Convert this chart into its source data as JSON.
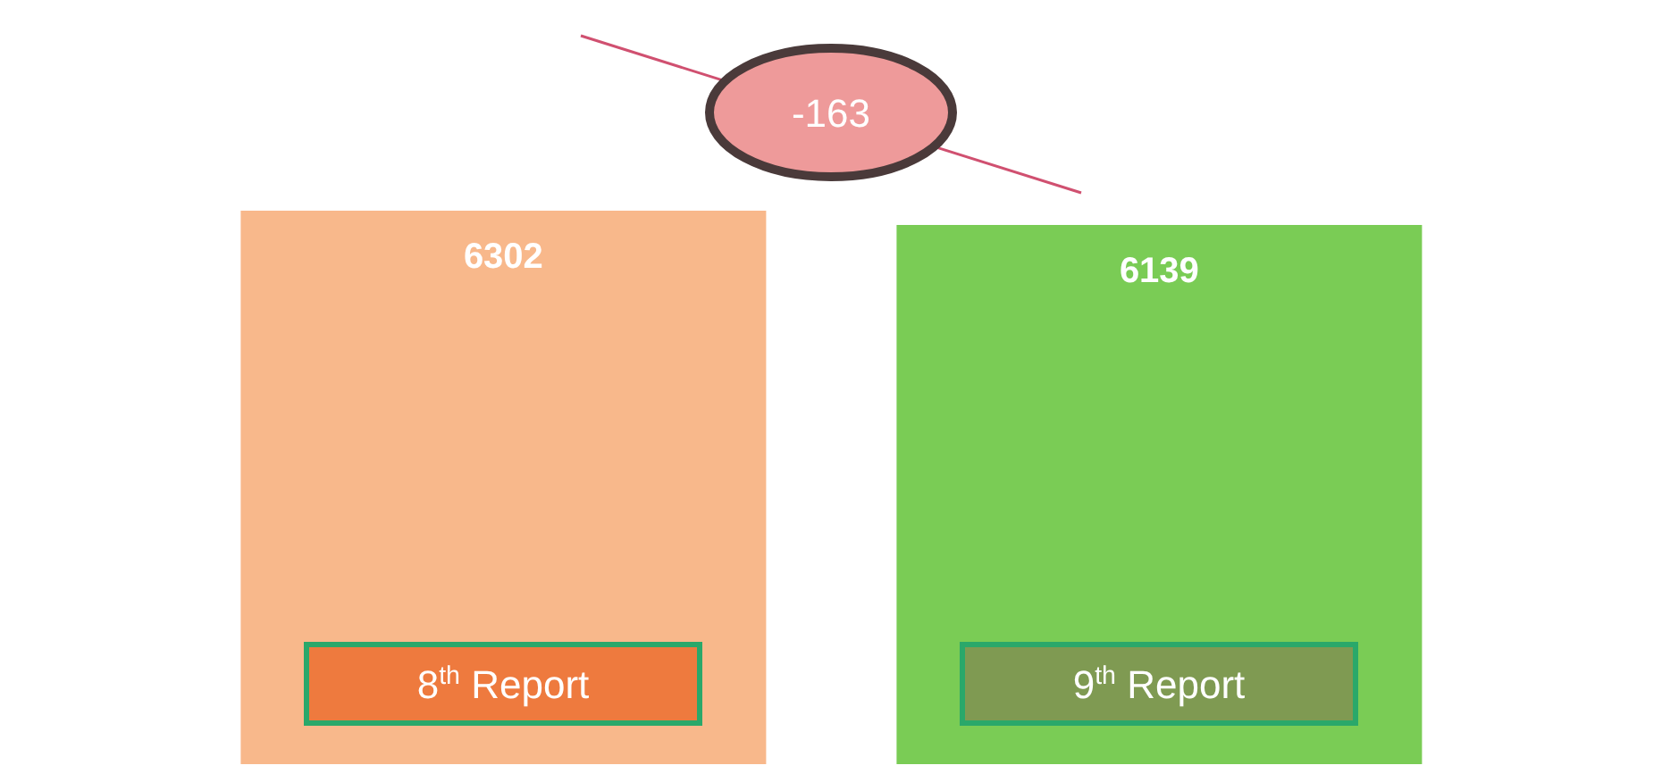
{
  "chart_data": {
    "type": "bar",
    "categories": [
      "8$^{th}$ Report",
      "9$^{th}$ Report"
    ],
    "values": [
      6302,
      6139
    ],
    "colors": [
      "#f8b88b",
      "#7acc55"
    ],
    "data_labels": true,
    "annotations": [
      "-163"
    ]
  }
}
